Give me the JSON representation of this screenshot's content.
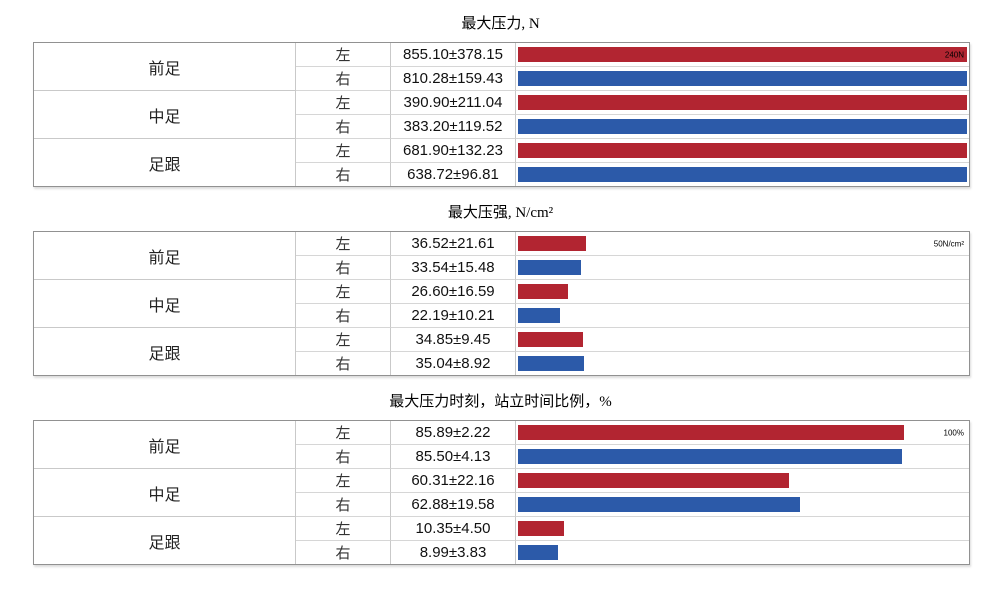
{
  "colors": {
    "left_bar": "#b22531",
    "right_bar": "#2c5aa9",
    "table_outer_border": "#919191",
    "table_grid": "#c9c9c9",
    "scale_label_text": "#000000"
  },
  "chart_data": [
    {
      "type": "bar",
      "orientation": "horizontal",
      "title": "最大压力, N",
      "axis_max_label": "240N",
      "axis_label_position": "inside-bar",
      "bar_scale_max": 240,
      "grid": false,
      "legend": "none",
      "groups": [
        "前足",
        "中足",
        "足跟"
      ],
      "rows": [
        {
          "group": "前足",
          "side": "左",
          "mean": 855.1,
          "sd": 378.15,
          "label": "855.10±378.15"
        },
        {
          "group": "前足",
          "side": "右",
          "mean": 810.28,
          "sd": 159.43,
          "label": "810.28±159.43"
        },
        {
          "group": "中足",
          "side": "左",
          "mean": 390.9,
          "sd": 211.04,
          "label": "390.90±211.04"
        },
        {
          "group": "中足",
          "side": "右",
          "mean": 383.2,
          "sd": 119.52,
          "label": "383.20±119.52"
        },
        {
          "group": "足跟",
          "side": "左",
          "mean": 681.9,
          "sd": 132.23,
          "label": "681.90±132.23"
        },
        {
          "group": "足跟",
          "side": "右",
          "mean": 638.72,
          "sd": 96.81,
          "label": "638.72±96.81"
        }
      ]
    },
    {
      "type": "bar",
      "orientation": "horizontal",
      "title": "最大压强, N/cm²",
      "axis_max_label": "50N/cm²",
      "axis_label_position": "cell-right",
      "bar_scale_max": 240,
      "grid": false,
      "legend": "none",
      "groups": [
        "前足",
        "中足",
        "足跟"
      ],
      "rows": [
        {
          "group": "前足",
          "side": "左",
          "mean": 36.52,
          "sd": 21.61,
          "label": "36.52±21.61"
        },
        {
          "group": "前足",
          "side": "右",
          "mean": 33.54,
          "sd": 15.48,
          "label": "33.54±15.48"
        },
        {
          "group": "中足",
          "side": "左",
          "mean": 26.6,
          "sd": 16.59,
          "label": "26.60±16.59"
        },
        {
          "group": "中足",
          "side": "右",
          "mean": 22.19,
          "sd": 10.21,
          "label": "22.19±10.21"
        },
        {
          "group": "足跟",
          "side": "左",
          "mean": 34.85,
          "sd": 9.45,
          "label": "34.85±9.45"
        },
        {
          "group": "足跟",
          "side": "右",
          "mean": 35.04,
          "sd": 8.92,
          "label": "35.04±8.92"
        }
      ]
    },
    {
      "type": "bar",
      "orientation": "horizontal",
      "title": "最大压力时刻，站立时间比例，%",
      "axis_max_label": "100%",
      "axis_label_position": "cell-right",
      "bar_scale_max": 100,
      "grid": false,
      "legend": "none",
      "groups": [
        "前足",
        "中足",
        "足跟"
      ],
      "rows": [
        {
          "group": "前足",
          "side": "左",
          "mean": 85.89,
          "sd": 2.22,
          "label": "85.89±2.22"
        },
        {
          "group": "前足",
          "side": "右",
          "mean": 85.5,
          "sd": 4.13,
          "label": "85.50±4.13"
        },
        {
          "group": "中足",
          "side": "左",
          "mean": 60.31,
          "sd": 22.16,
          "label": "60.31±22.16"
        },
        {
          "group": "中足",
          "side": "右",
          "mean": 62.88,
          "sd": 19.58,
          "label": "62.88±19.58"
        },
        {
          "group": "足跟",
          "side": "左",
          "mean": 10.35,
          "sd": 4.5,
          "label": "10.35±4.50"
        },
        {
          "group": "足跟",
          "side": "右",
          "mean": 8.99,
          "sd": 3.83,
          "label": "8.99±3.83"
        }
      ]
    }
  ]
}
